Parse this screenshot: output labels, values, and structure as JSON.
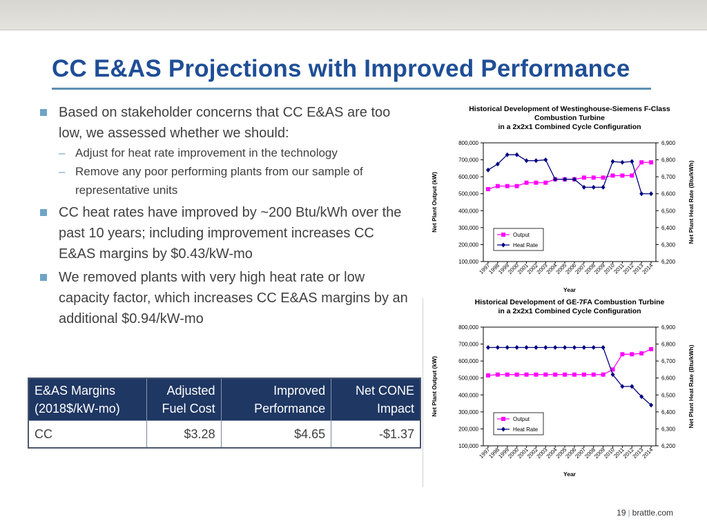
{
  "slide": {
    "title": "CC E&AS Projections with Improved Performance"
  },
  "bullets": [
    {
      "text": "Based on stakeholder concerns that CC E&AS are too low, we assessed whether we should:",
      "subs": [
        "Adjust for heat rate improvement in the technology",
        "Remove any poor performing plants from our sample of representative units"
      ]
    },
    {
      "text": "CC heat rates have improved by ~200 Btu/kWh over the past 10 years; including improvement increases CC E&AS margins by $0.43/kW-mo"
    },
    {
      "text": "We removed plants with very high heat rate or low capacity factor, which increases CC E&AS margins by an additional $0.94/kW-mo"
    }
  ],
  "table": {
    "headers": [
      "E&AS Margins (2018$/kW-mo)",
      "Adjusted Fuel Cost",
      "Improved Performance",
      "Net CONE Impact"
    ],
    "rows": [
      [
        "CC",
        "$3.28",
        "$4.65",
        "-$1.37"
      ]
    ]
  },
  "chart_data": [
    {
      "type": "line",
      "title": "Historical Development of Westinghouse-Siemens F-Class Combustion Turbine in a 2x2x1 Combined Cycle Configuration",
      "title_lines": [
        "Historical Development of Westinghouse-Siemens F-Class",
        "Combustion Turbine",
        "in a 2x2x1 Combined Cycle Configuration"
      ],
      "xlabel": "Year",
      "ylabel": "Net Plant Output (kW)",
      "y2label": "Net Plant Heat Rate (Btu/kWh)",
      "categories": [
        "1997",
        "1998",
        "1999",
        "2000",
        "2001",
        "2002",
        "2003",
        "2004",
        "2005",
        "2006",
        "2007",
        "2008",
        "2009",
        "2010",
        "2011",
        "2012",
        "2013",
        "2014"
      ],
      "ylim": [
        100000,
        800000
      ],
      "y2lim": [
        6200,
        6900
      ],
      "yticks": [
        "800,000",
        "700,000",
        "600,000",
        "500,000",
        "400,000",
        "300,000",
        "200,000",
        "100,000"
      ],
      "y2ticks": [
        "6,900",
        "6,800",
        "6,700",
        "6,600",
        "6,500",
        "6,400",
        "6,300",
        "6,200"
      ],
      "grid": false,
      "legend": "lower-middle",
      "series": [
        {
          "name": "Output",
          "axis": "left",
          "color": "#ff00ff",
          "marker": "square",
          "values": [
            527000,
            545000,
            545000,
            545000,
            565000,
            565000,
            565000,
            585000,
            585000,
            585000,
            595000,
            595000,
            595000,
            607000,
            607000,
            607000,
            685000,
            685000
          ]
        },
        {
          "name": "Heat Rate",
          "axis": "right",
          "color": "#000080",
          "marker": "diamond",
          "values": [
            6740,
            6775,
            6830,
            6830,
            6795,
            6795,
            6800,
            6685,
            6685,
            6685,
            6638,
            6638,
            6638,
            6790,
            6785,
            6790,
            6600,
            6600
          ]
        }
      ]
    },
    {
      "type": "line",
      "title": "Historical Development of GE-7FA Combustion Turbine in a 2x2x1 Combined Cycle Configuration",
      "title_lines": [
        "Historical Development of GE-7FA Combustion Turbine",
        "in a 2x2x1 Combined Cycle Configuration"
      ],
      "xlabel": "Year",
      "ylabel": "Net Plant Output (kW)",
      "y2label": "Net Plant Heat Rate (Btu/kWh)",
      "categories": [
        "1997",
        "1998",
        "1999",
        "2000",
        "2001",
        "2002",
        "2003",
        "2004",
        "2005",
        "2006",
        "2007",
        "2008",
        "2009",
        "2010",
        "2011",
        "2012",
        "2013",
        "2014"
      ],
      "ylim": [
        100000,
        800000
      ],
      "y2lim": [
        6200,
        6900
      ],
      "yticks": [
        "800,000",
        "700,000",
        "600,000",
        "500,000",
        "400,000",
        "300,000",
        "200,000",
        "100,000"
      ],
      "y2ticks": [
        "6,900",
        "6,800",
        "6,700",
        "6,600",
        "6,500",
        "6,400",
        "6,300",
        "6,200"
      ],
      "grid": false,
      "legend": "lower-middle",
      "series": [
        {
          "name": "Output",
          "axis": "left",
          "color": "#ff00ff",
          "marker": "square",
          "values": [
            515000,
            520000,
            520000,
            520000,
            520000,
            520000,
            520000,
            520000,
            520000,
            520000,
            520000,
            520000,
            520000,
            550000,
            640000,
            640000,
            645000,
            670000
          ]
        },
        {
          "name": "Heat Rate",
          "axis": "right",
          "color": "#000080",
          "marker": "diamond",
          "values": [
            6780,
            6780,
            6780,
            6780,
            6780,
            6780,
            6780,
            6780,
            6780,
            6780,
            6780,
            6780,
            6780,
            6620,
            6550,
            6550,
            6490,
            6440
          ]
        }
      ]
    }
  ],
  "footer": {
    "page": "19",
    "site": "brattle.com"
  }
}
